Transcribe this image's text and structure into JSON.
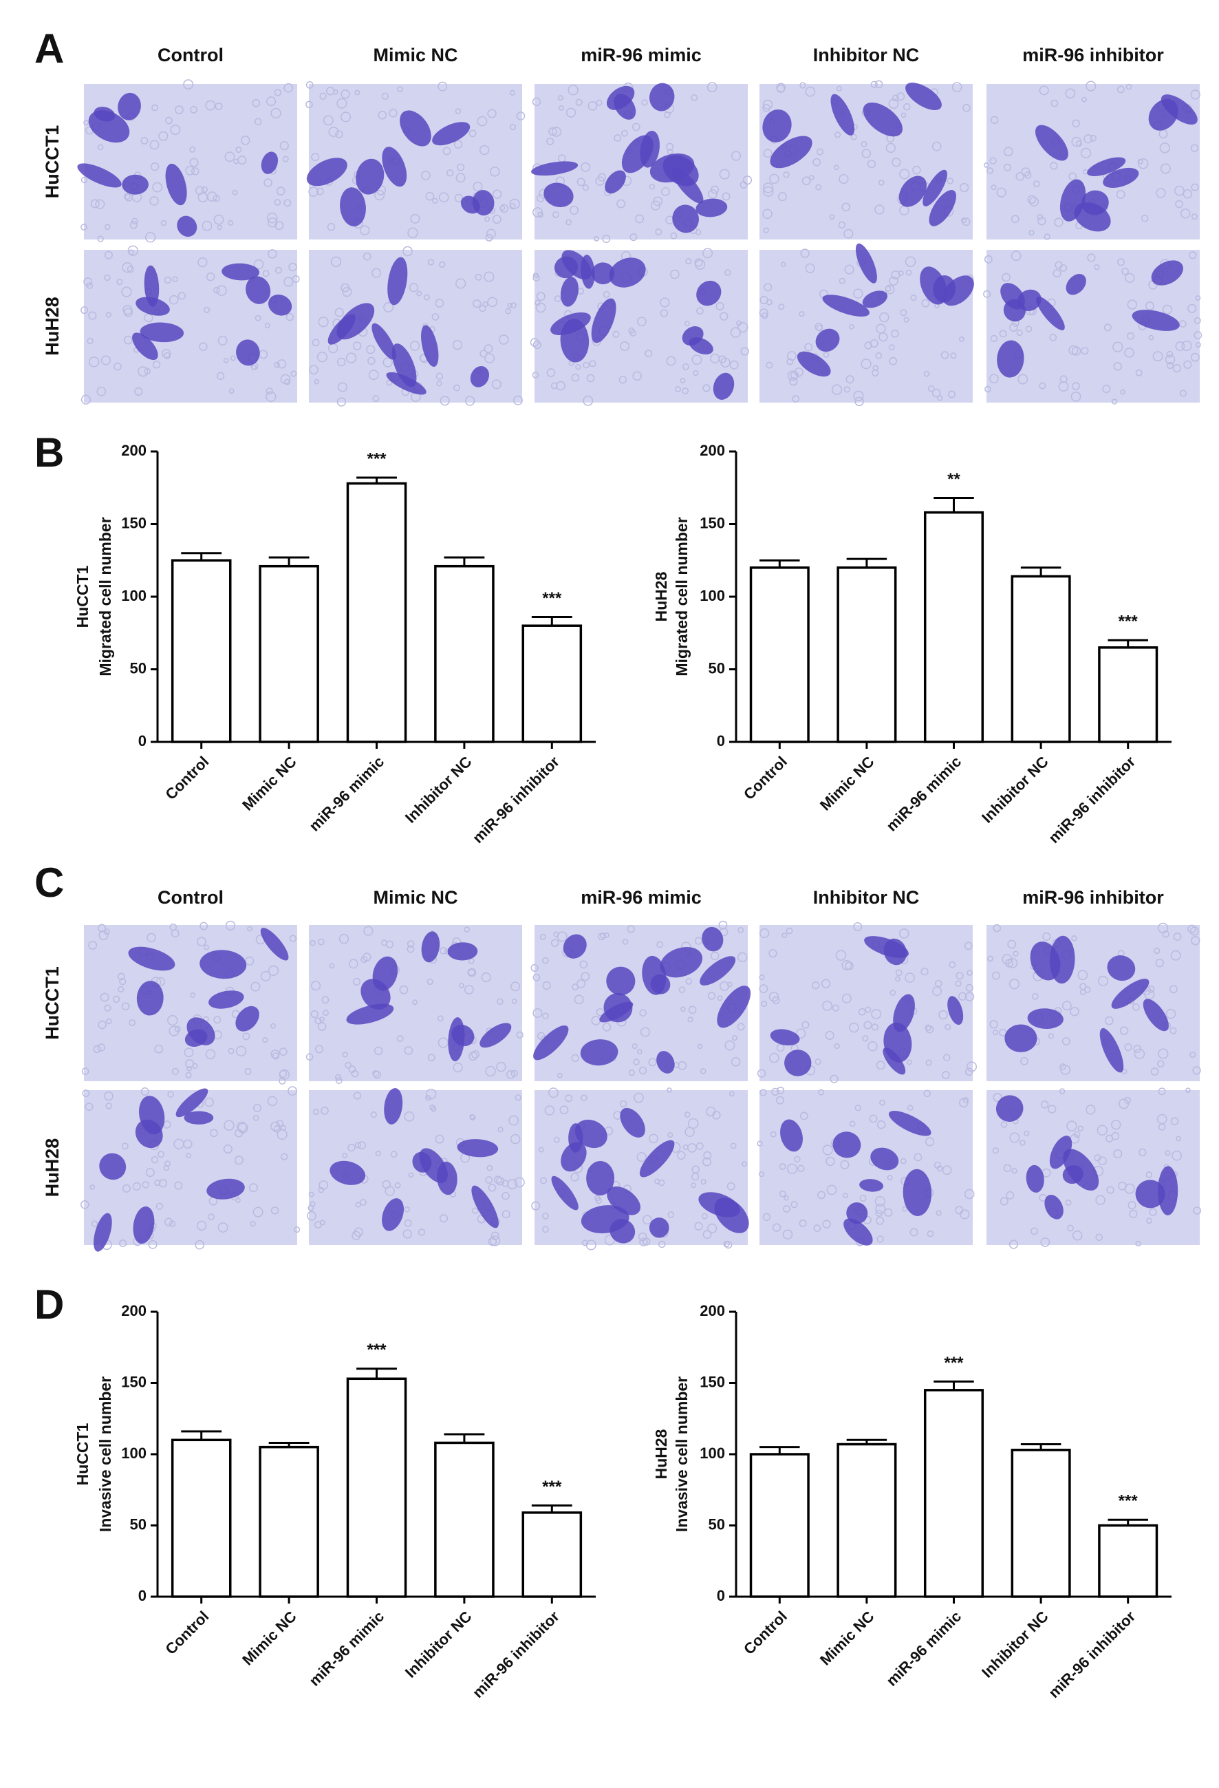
{
  "panel_labels": [
    "A",
    "B",
    "C",
    "D"
  ],
  "image_panels": [
    {
      "columns": [
        "Control",
        "Mimic NC",
        "miR-96 mimic",
        "Inhibitor NC",
        "miR-96 inhibitor"
      ],
      "rows": [
        "HuCCT1",
        "HuH28"
      ]
    },
    {
      "columns": [
        "Control",
        "Mimic NC",
        "miR-96 mimic",
        "Inhibitor NC",
        "miR-96 inhibitor"
      ],
      "rows": [
        "HuCCT1",
        "HuH28"
      ]
    }
  ],
  "chart_data": [
    {
      "type": "bar",
      "ylabel": [
        "HuCCT1",
        "Migrated cell number"
      ],
      "categories": [
        "Control",
        "Mimic NC",
        "miR-96 mimic",
        "Inhibitor NC",
        "miR-96 inhibitor"
      ],
      "values": [
        125,
        121,
        178,
        121,
        80
      ],
      "errors": [
        5,
        6,
        4,
        6,
        6
      ],
      "annotations": [
        null,
        null,
        "***",
        null,
        "***"
      ],
      "color": "#ffffff",
      "edgecolor": "#000000",
      "ylim": [
        0,
        200
      ],
      "yticks": [
        0,
        50,
        100,
        150,
        200
      ]
    },
    {
      "type": "bar",
      "ylabel": [
        "HuH28",
        "Migrated cell number"
      ],
      "categories": [
        "Control",
        "Mimic NC",
        "miR-96 mimic",
        "Inhibitor NC",
        "miR-96 inhibitor"
      ],
      "values": [
        120,
        120,
        158,
        114,
        65
      ],
      "errors": [
        5,
        6,
        10,
        6,
        5
      ],
      "annotations": [
        null,
        null,
        "**",
        null,
        "***"
      ],
      "color": "#ffffff",
      "edgecolor": "#000000",
      "ylim": [
        0,
        200
      ],
      "yticks": [
        0,
        50,
        100,
        150,
        200
      ]
    },
    {
      "type": "bar",
      "ylabel": [
        "HuCCT1",
        "Invasive cell number"
      ],
      "categories": [
        "Control",
        "Mimic NC",
        "miR-96 mimic",
        "Inhibitor NC",
        "miR-96 inhibitor"
      ],
      "values": [
        110,
        105,
        153,
        108,
        59
      ],
      "errors": [
        6,
        3,
        7,
        6,
        5
      ],
      "annotations": [
        null,
        null,
        "***",
        null,
        "***"
      ],
      "color": "#ffffff",
      "edgecolor": "#000000",
      "ylim": [
        0,
        200
      ],
      "yticks": [
        0,
        50,
        100,
        150,
        200
      ]
    },
    {
      "type": "bar",
      "ylabel": [
        "HuH28",
        "Invasive cell number"
      ],
      "categories": [
        "Control",
        "Mimic NC",
        "miR-96 mimic",
        "Inhibitor NC",
        "miR-96 inhibitor"
      ],
      "values": [
        100,
        107,
        145,
        103,
        50
      ],
      "errors": [
        5,
        3,
        6,
        4,
        4
      ],
      "annotations": [
        null,
        null,
        "***",
        null,
        "***"
      ],
      "color": "#ffffff",
      "edgecolor": "#000000",
      "ylim": [
        0,
        200
      ],
      "yticks": [
        0,
        50,
        100,
        150,
        200
      ]
    }
  ]
}
